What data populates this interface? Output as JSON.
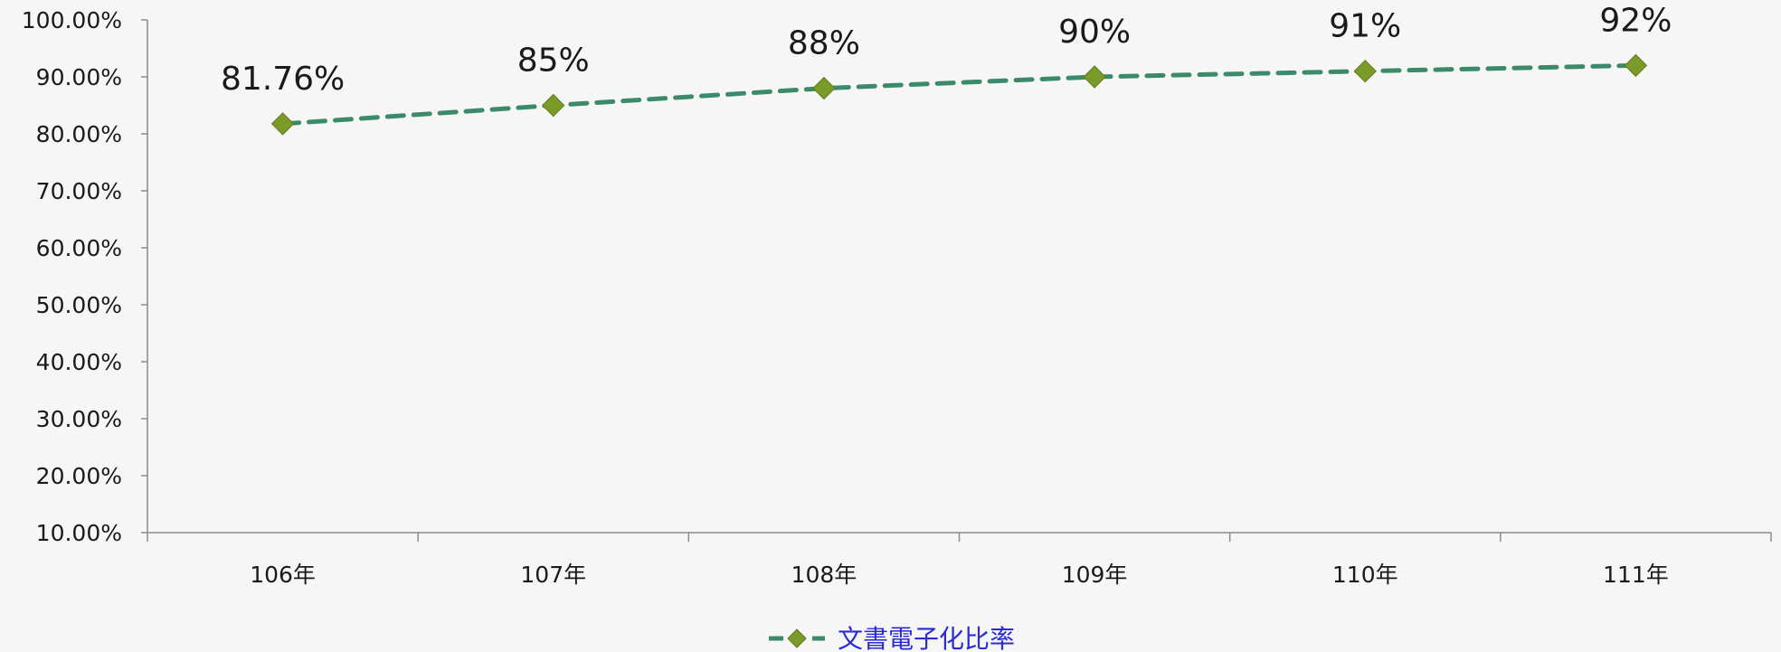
{
  "chart_data": {
    "type": "line",
    "title": "",
    "xlabel": "",
    "ylabel": "",
    "categories": [
      "106年",
      "107年",
      "108年",
      "109年",
      "110年",
      "111年"
    ],
    "series": [
      {
        "name": "文書電子化比率",
        "values": [
          81.76,
          85,
          88,
          90,
          91,
          92
        ],
        "data_labels": [
          "81.76%",
          "85%",
          "88%",
          "90%",
          "91%",
          "92%"
        ],
        "line_color": "#3b8a6a",
        "line_style": "dashed",
        "marker": "diamond",
        "marker_color": "#7a9a2a"
      }
    ],
    "ylim": [
      10,
      100
    ],
    "y_ticks": [
      10,
      20,
      30,
      40,
      50,
      60,
      70,
      80,
      90,
      100
    ],
    "y_tick_labels": [
      "10.00%",
      "20.00%",
      "30.00%",
      "40.00%",
      "50.00%",
      "60.00%",
      "70.00%",
      "80.00%",
      "90.00%",
      "100.00%"
    ],
    "grid": false,
    "legend_position": "bottom-center",
    "legend_text_color": "#2b2bd6",
    "axis_color": "#8c8c8c",
    "text_color": "#1a1a1a"
  }
}
